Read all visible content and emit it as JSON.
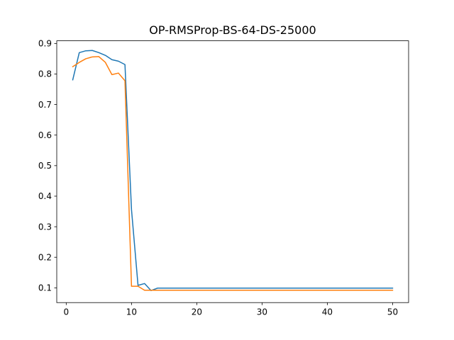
{
  "chart_data": {
    "type": "line",
    "title": "OP-RMSProp-BS-64-DS-25000",
    "xlabel": "",
    "ylabel": "",
    "xlim": [
      -1.45,
      52.45
    ],
    "ylim": [
      0.0516,
      0.9087
    ],
    "xticks": [
      0,
      10,
      20,
      30,
      40,
      50
    ],
    "yticks": [
      0.1,
      0.2,
      0.3,
      0.4,
      0.5,
      0.6,
      0.7,
      0.8,
      0.9
    ],
    "ytick_labels": [
      "0.1",
      "0.2",
      "0.3",
      "0.4",
      "0.5",
      "0.6",
      "0.7",
      "0.8",
      "0.9"
    ],
    "grid": false,
    "legend": false,
    "x": [
      1,
      2,
      3,
      4,
      5,
      6,
      7,
      8,
      9,
      10,
      11,
      12,
      13,
      14,
      15,
      16,
      17,
      18,
      19,
      20,
      21,
      22,
      23,
      24,
      25,
      26,
      27,
      28,
      29,
      30,
      31,
      32,
      33,
      34,
      35,
      36,
      37,
      38,
      39,
      40,
      41,
      42,
      43,
      44,
      45,
      46,
      47,
      48,
      49,
      50
    ],
    "series": [
      {
        "color": "#1f77b4",
        "values": [
          0.781,
          0.87,
          0.876,
          0.877,
          0.87,
          0.861,
          0.847,
          0.842,
          0.831,
          0.356,
          0.108,
          0.114,
          0.091,
          0.099,
          0.099,
          0.099,
          0.099,
          0.099,
          0.099,
          0.099,
          0.099,
          0.099,
          0.099,
          0.099,
          0.099,
          0.099,
          0.099,
          0.099,
          0.099,
          0.099,
          0.099,
          0.099,
          0.099,
          0.099,
          0.099,
          0.099,
          0.099,
          0.099,
          0.099,
          0.099,
          0.099,
          0.099,
          0.099,
          0.099,
          0.099,
          0.099,
          0.099,
          0.099,
          0.099,
          0.099
        ]
      },
      {
        "color": "#ff7f0e",
        "values": [
          0.824,
          0.838,
          0.85,
          0.856,
          0.857,
          0.838,
          0.798,
          0.803,
          0.778,
          0.105,
          0.105,
          0.092,
          0.092,
          0.092,
          0.092,
          0.092,
          0.092,
          0.092,
          0.092,
          0.092,
          0.092,
          0.092,
          0.092,
          0.092,
          0.092,
          0.092,
          0.092,
          0.092,
          0.092,
          0.092,
          0.092,
          0.092,
          0.092,
          0.092,
          0.092,
          0.092,
          0.092,
          0.092,
          0.092,
          0.092,
          0.092,
          0.092,
          0.092,
          0.092,
          0.092,
          0.092,
          0.092,
          0.092,
          0.092,
          0.092
        ]
      }
    ]
  }
}
